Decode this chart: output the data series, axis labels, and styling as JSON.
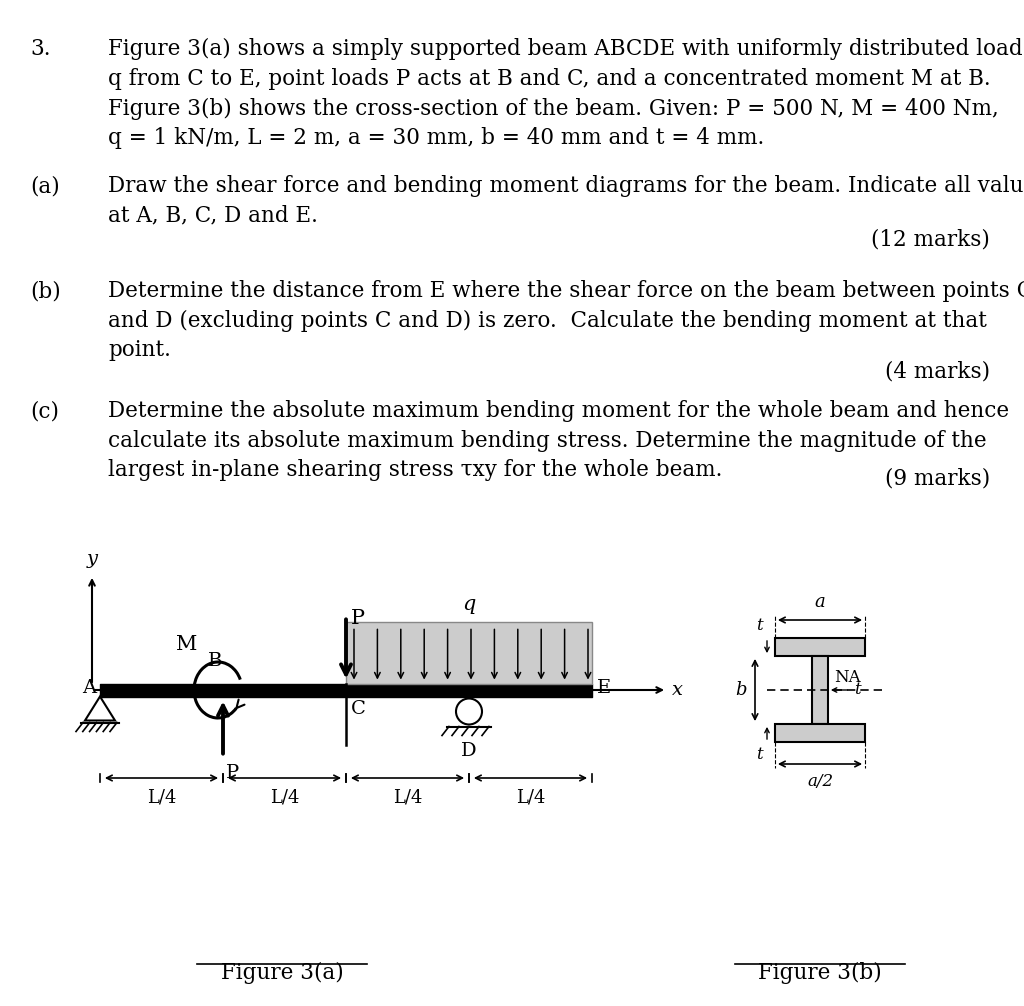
{
  "bg_color": "#ffffff",
  "text_color": "#000000",
  "title_num": "3.",
  "title_text_lines": [
    "Figure 3(a) shows a simply supported beam ABCDE with uniformly distributed load",
    "q from C to E, point loads P acts at B and C, and a concentrated moment M at B.",
    "Figure 3(b) shows the cross-section of the beam. Given: P = 500 N, M = 400 Nm,",
    "q = 1 kN/m, L = 2 m, a = 30 mm, b = 40 mm and t = 4 mm."
  ],
  "part_a_label": "(a)",
  "part_a_text": "Draw the shear force and bending moment diagrams for the beam. Indicate all values\nat A, B, C, D and E.",
  "part_a_marks": "(12 marks)",
  "part_b_label": "(b)",
  "part_b_text": "Determine the distance from E where the shear force on the beam between points C\nand D (excluding points C and D) is zero.  Calculate the bending moment at that\npoint.",
  "part_b_marks": "(4 marks)",
  "part_c_label": "(c)",
  "part_c_text": "Determine the absolute maximum bending moment for the whole beam and hence\ncalculate its absolute maximum bending stress. Determine the magnitude of the\nlargest in-plane shearing stress τxy for the whole beam.",
  "part_c_marks": "(9 marks)",
  "fig3a_caption": "Figure 3(a)",
  "fig3b_caption": "Figure 3(b)"
}
